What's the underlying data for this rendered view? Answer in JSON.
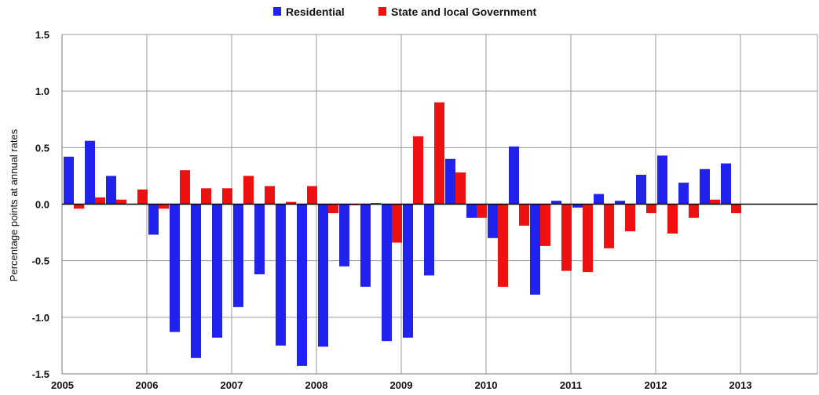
{
  "chart_data": {
    "type": "bar",
    "title": "",
    "xlabel": "",
    "ylabel": "Percentage points at annual rates",
    "ylim": [
      -1.5,
      1.5
    ],
    "yticks": [
      -1.5,
      -1.0,
      -0.5,
      0.0,
      0.5,
      1.0,
      1.5
    ],
    "ytick_labels": [
      "-1.5",
      "-1.0",
      "-0.5",
      "0.0",
      "0.5",
      "1.0",
      "1.5"
    ],
    "xtick_labels": [
      "2005",
      "2006",
      "2007",
      "2008",
      "2009",
      "2010",
      "2011",
      "2012",
      "2013"
    ],
    "grid": true,
    "legend_position": "top",
    "categories": [
      "2005 Q1",
      "2005 Q2",
      "2005 Q3",
      "2005 Q4",
      "2006 Q1",
      "2006 Q2",
      "2006 Q3",
      "2006 Q4",
      "2007 Q1",
      "2007 Q2",
      "2007 Q3",
      "2007 Q4",
      "2008 Q1",
      "2008 Q2",
      "2008 Q3",
      "2008 Q4",
      "2009 Q1",
      "2009 Q2",
      "2009 Q3",
      "2009 Q4",
      "2010 Q1",
      "2010 Q2",
      "2010 Q3",
      "2010 Q4",
      "2011 Q1",
      "2011 Q2",
      "2011 Q3",
      "2011 Q4",
      "2012 Q1",
      "2012 Q2",
      "2012 Q3",
      "2012 Q4"
    ],
    "series": [
      {
        "name": "Residential",
        "color": "#2222ee",
        "values": [
          0.42,
          0.56,
          0.25,
          0.0,
          -0.27,
          -1.13,
          -1.36,
          -1.18,
          -0.91,
          -0.62,
          -1.25,
          -1.43,
          -1.26,
          -0.55,
          -0.73,
          -1.21,
          -1.18,
          -0.63,
          0.4,
          -0.12,
          -0.3,
          0.51,
          -0.8,
          0.03,
          -0.03,
          0.09,
          0.03,
          0.26,
          0.43,
          0.19,
          0.31,
          0.36
        ]
      },
      {
        "name": "State and local Government",
        "color": "#ee1111",
        "values": [
          -0.04,
          0.06,
          0.04,
          0.13,
          -0.04,
          0.3,
          0.14,
          0.14,
          0.25,
          0.16,
          0.02,
          0.16,
          -0.08,
          -0.01,
          0.01,
          -0.34,
          0.6,
          0.9,
          0.28,
          -0.12,
          -0.73,
          -0.19,
          -0.37,
          -0.59,
          -0.6,
          -0.39,
          -0.24,
          -0.08,
          -0.26,
          -0.12,
          0.04,
          -0.08
        ]
      }
    ]
  }
}
